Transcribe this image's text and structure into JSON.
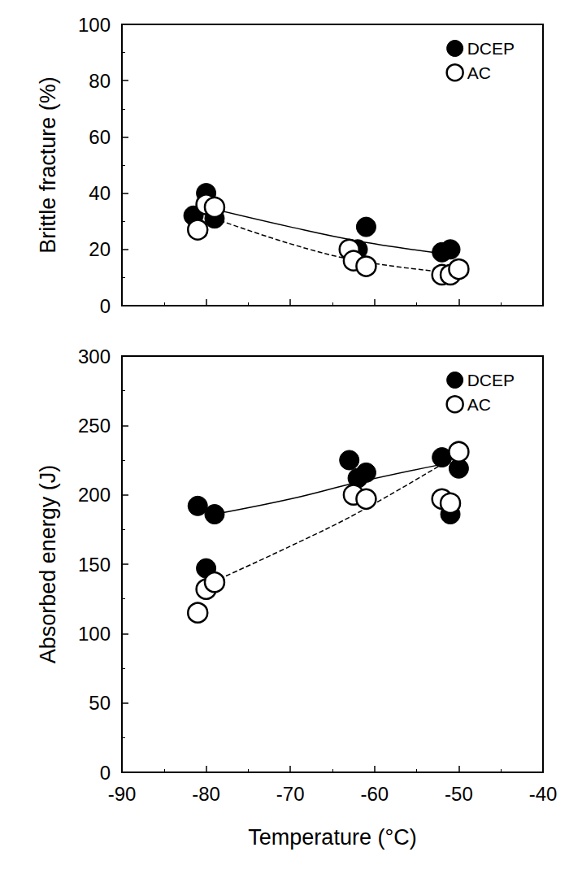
{
  "chart_data": [
    {
      "type": "scatter",
      "y_label": "Brittle fracture (%)",
      "xlim": [
        -90,
        -40
      ],
      "xticks": [
        -90,
        -80,
        -70,
        -60,
        -50,
        -40
      ],
      "ylim": [
        0,
        100
      ],
      "yticks": [
        0,
        20,
        40,
        60,
        80,
        100
      ],
      "grid": false,
      "legend": "upper right",
      "tick_labels": "y",
      "series": [
        {
          "name": "DCEP",
          "type": "scatter",
          "marker": "circle",
          "color": "#000000",
          "x": [
            -81.5,
            -80,
            -79,
            -62,
            -61,
            -52,
            -51
          ],
          "values": [
            32,
            40,
            31,
            20,
            28,
            19,
            20
          ]
        },
        {
          "name": "AC",
          "type": "scatter",
          "marker": "open_circle",
          "color": "#000000",
          "x": [
            -81,
            -80,
            -79,
            -63,
            -62.5,
            -61,
            -52,
            -51,
            -50
          ],
          "values": [
            27,
            36,
            35,
            20,
            16,
            14,
            11,
            11,
            13
          ]
        },
        {
          "name": "DCEP",
          "type": "line",
          "line_style": "solid",
          "color": "#000000",
          "x": [
            -80,
            -70,
            -62,
            -52
          ],
          "values": [
            35,
            28,
            23,
            18.5
          ]
        },
        {
          "name": "AC",
          "type": "line",
          "line_style": "dashed",
          "color": "#000000",
          "x": [
            -80,
            -70,
            -62,
            -52
          ],
          "values": [
            32,
            22,
            16,
            12
          ]
        }
      ]
    },
    {
      "type": "scatter",
      "x_label": "Temperature (°C)",
      "y_label": "Absorbed energy (J)",
      "xlim": [
        -90,
        -40
      ],
      "xticks": [
        -90,
        -80,
        -70,
        -60,
        -50,
        -40
      ],
      "ylim": [
        0,
        300
      ],
      "yticks": [
        0,
        50,
        100,
        150,
        200,
        250,
        300
      ],
      "grid": false,
      "legend": "upper right",
      "tick_labels": true,
      "series": [
        {
          "name": "DCEP",
          "type": "scatter",
          "marker": "circle",
          "color": "#000000",
          "x": [
            -81,
            -79,
            -80,
            -63,
            -62,
            -61,
            -52,
            -51,
            -50
          ],
          "values": [
            192,
            186,
            147,
            225,
            212,
            216,
            227,
            186,
            219
          ]
        },
        {
          "name": "AC",
          "type": "scatter",
          "marker": "open_circle",
          "color": "#000000",
          "x": [
            -81,
            -80,
            -79,
            -62.5,
            -61,
            -52,
            -51,
            -50
          ],
          "values": [
            115,
            132,
            137,
            200,
            197,
            197,
            194,
            231
          ]
        },
        {
          "name": "DCEP",
          "type": "line",
          "line_style": "solid",
          "color": "#000000",
          "x": [
            -79,
            -70,
            -62,
            -52
          ],
          "values": [
            186,
            197,
            209,
            222
          ]
        },
        {
          "name": "AC",
          "type": "line",
          "line_style": "dashed",
          "color": "#000000",
          "x": [
            -80,
            -70,
            -62,
            -52
          ],
          "values": [
            135,
            163,
            187,
            222
          ]
        }
      ]
    }
  ]
}
